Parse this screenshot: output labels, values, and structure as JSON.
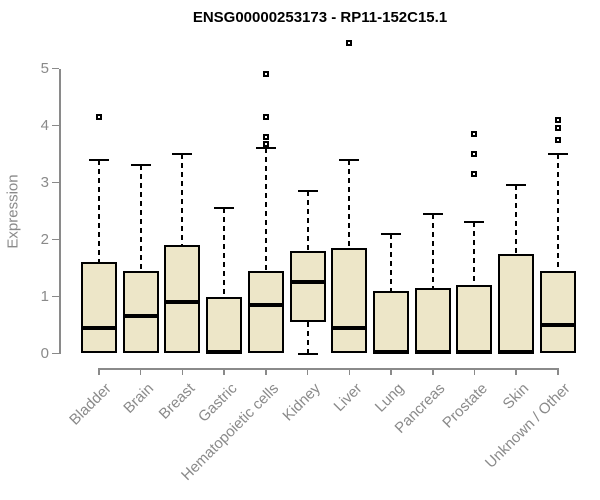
{
  "chart_data": {
    "type": "box",
    "title": "ENSG00000253173 - RP11-152C15.1",
    "xlabel": "",
    "ylabel": "Expression",
    "ylim": [
      0,
      5
    ],
    "yticks": [
      0,
      1,
      2,
      3,
      4,
      5
    ],
    "grid": false,
    "legend": null,
    "x_tick_rotation": 45,
    "categories": [
      "Bladder",
      "Brain",
      "Breast",
      "Gastric",
      "Hematopoietic cells",
      "Kidney",
      "Liver",
      "Lung",
      "Pancreas",
      "Prostate",
      "Skin",
      "Unknown / Other"
    ],
    "series": [
      {
        "name": "Bladder",
        "low": 0,
        "q1": 0,
        "median": 0.45,
        "q3": 1.6,
        "high": 3.4,
        "outliers": [
          4.15
        ]
      },
      {
        "name": "Brain",
        "low": 0,
        "q1": 0,
        "median": 0.65,
        "q3": 1.45,
        "high": 3.3,
        "outliers": []
      },
      {
        "name": "Breast",
        "low": 0,
        "q1": 0,
        "median": 0.9,
        "q3": 1.9,
        "high": 3.5,
        "outliers": []
      },
      {
        "name": "Gastric",
        "low": 0,
        "q1": 0,
        "median": 0.03,
        "q3": 1.0,
        "high": 2.55,
        "outliers": []
      },
      {
        "name": "Hematopoietic cells",
        "low": 0,
        "q1": 0,
        "median": 0.85,
        "q3": 1.45,
        "high": 3.6,
        "outliers": [
          4.9,
          4.15,
          3.8,
          3.68
        ]
      },
      {
        "name": "Kidney",
        "low": 0,
        "q1": 0.55,
        "median": 1.25,
        "q3": 1.8,
        "high": 2.85,
        "outliers": []
      },
      {
        "name": "Liver",
        "low": 0,
        "q1": 0,
        "median": 0.45,
        "q3": 1.85,
        "high": 3.4,
        "outliers": [
          5.45
        ]
      },
      {
        "name": "Lung",
        "low": 0,
        "q1": 0,
        "median": 0.03,
        "q3": 1.1,
        "high": 2.1,
        "outliers": []
      },
      {
        "name": "Pancreas",
        "low": 0,
        "q1": 0,
        "median": 0.03,
        "q3": 1.15,
        "high": 2.45,
        "outliers": []
      },
      {
        "name": "Prostate",
        "low": 0,
        "q1": 0,
        "median": 0.03,
        "q3": 1.2,
        "high": 2.3,
        "outliers": [
          3.85,
          3.5,
          3.15
        ]
      },
      {
        "name": "Skin",
        "low": 0,
        "q1": 0,
        "median": 0.03,
        "q3": 1.75,
        "high": 2.95,
        "outliers": []
      },
      {
        "name": "Unknown / Other",
        "low": 0,
        "q1": 0,
        "median": 0.5,
        "q3": 1.45,
        "high": 3.5,
        "outliers": [
          4.1,
          3.95,
          3.75
        ]
      }
    ],
    "colors": {
      "box_fill": "#EDE6C8",
      "box_border": "#000000",
      "median": "#000000",
      "whisker": "#000000",
      "axis": "#8A8A8A",
      "tick_label": "#8A8A8A",
      "title": "#000000",
      "background": "#FFFFFF"
    }
  }
}
